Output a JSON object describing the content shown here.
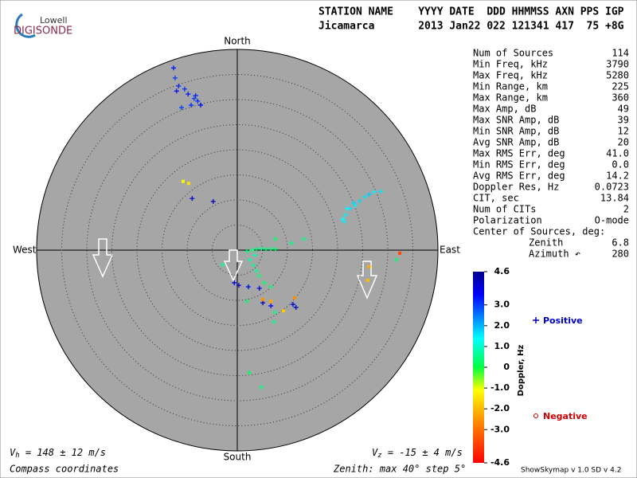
{
  "logo": {
    "top": "Lowell",
    "bottom": "DIGISONDE"
  },
  "header": {
    "line1": "STATION NAME    YYYY DATE  DDD HHMMSS AXN PPS IGP",
    "line2": "Jicamarca       2013 Jan22 022 121341 417  75 +8G"
  },
  "chart_data": {
    "type": "skymap",
    "directions": {
      "north": "North",
      "south": "South",
      "west": "West",
      "east": "East"
    },
    "rlim": [
      0,
      40
    ],
    "rticks": [
      5,
      10,
      15,
      20,
      25,
      30,
      35
    ],
    "sources": {
      "x": [
        -12.7,
        -12.4,
        -11.7,
        -12.1,
        -10.5,
        -9.8,
        -8.6,
        -7.9,
        -7.3,
        -9.2,
        -11.1,
        -8.3,
        -10.8,
        -9.7,
        -9.0,
        -4.8,
        21.0,
        21.6,
        22.5,
        23.5,
        24.4,
        25.4,
        26.3,
        27.3,
        28.6,
        21.9,
        23.2,
        21.3,
        1.9,
        2.9,
        3.8,
        4.8,
        5.7,
        6.7,
        7.6,
        3.5,
        2.5,
        3.2,
        3.8,
        4.4,
        5.4,
        6.7,
        -2.9,
        10.8,
        13.3,
        7.6,
        -0.6,
        0.3,
        2.2,
        4.4,
        5.1,
        6.7,
        11.1,
        11.7,
        5.1,
        6.7,
        9.2,
        11.4,
        26.3,
        26.0,
        7.5,
        7.3,
        1.9,
        2.4,
        4.8,
        31.7,
        32.4
      ],
      "y": [
        36.3,
        34.3,
        32.7,
        31.7,
        32.1,
        31.1,
        30.2,
        29.7,
        28.9,
        28.9,
        28.4,
        30.8,
        13.7,
        13.3,
        10.3,
        9.7,
        6.2,
        7.0,
        8.3,
        8.9,
        9.8,
        10.6,
        11.1,
        11.6,
        11.7,
        8.3,
        9.4,
        5.7,
        -0.2,
        0,
        0.2,
        0.3,
        0.2,
        0.3,
        0.2,
        -1.0,
        -1.9,
        -3.0,
        -4.1,
        -5.1,
        -6.5,
        -7.3,
        -2.9,
        1.4,
        2.2,
        2.2,
        -6.5,
        -7.0,
        -7.3,
        -7.6,
        -10.5,
        -11.1,
        -10.8,
        -11.4,
        -9.8,
        -10.2,
        -12.1,
        -9.5,
        -3.3,
        -6.0,
        -12.4,
        -14.3,
        -10.2,
        -24.4,
        -27.3,
        -1.9,
        -0.6
      ],
      "doppler": [
        3.3,
        3.0,
        3.2,
        3.4,
        3.1,
        3.3,
        3.0,
        3.2,
        3.4,
        3.1,
        3.0,
        3.2,
        -1.2,
        -1.5,
        4.0,
        4.2,
        1.4,
        1.5,
        1.6,
        1.5,
        1.7,
        1.6,
        1.8,
        1.5,
        1.6,
        1.4,
        1.7,
        1.5,
        0.4,
        0.5,
        0.3,
        0.6,
        0.4,
        0.5,
        0.3,
        0.7,
        0.8,
        0.5,
        0.6,
        0.4,
        0.3,
        0.5,
        0.6,
        0.4,
        0.5,
        0.3,
        3.8,
        4.0,
        3.6,
        3.8,
        4.2,
        3.5,
        3.9,
        4.1,
        -2.5,
        -2.3,
        -1.8,
        -2.6,
        -2.2,
        -2.0,
        0.5,
        0.6,
        0.4,
        0.3,
        0.5,
        0.3,
        -3.6
      ]
    },
    "colorbar": {
      "label": "Doppler, Hz",
      "lim": [
        -4.6,
        4.6
      ],
      "ticks": [
        4.6,
        {
          "value": 3,
          "label": "3.0"
        },
        {
          "value": 2,
          "label": "2.0"
        },
        {
          "value": 1,
          "label": "1.0"
        },
        0,
        {
          "value": -1,
          "label": "-1.0"
        },
        {
          "value": -2,
          "label": "-2.0"
        },
        {
          "value": -3,
          "label": "-3.0"
        },
        -4.6
      ]
    },
    "legend": {
      "positive": "Positive",
      "negative": "Negative"
    }
  },
  "table": [
    [
      "Num of Sources",
      "114"
    ],
    [
      "Min Freq, kHz",
      "3790"
    ],
    [
      "Max Freq, kHz",
      "5280"
    ],
    [
      "Min Range, km",
      "225"
    ],
    [
      "Max Range, km",
      "360"
    ],
    [
      "Max Amp, dB",
      "49"
    ],
    [
      "Max SNR Amp, dB",
      "39"
    ],
    [
      "Min SNR Amp, dB",
      "12"
    ],
    [
      "Avg SNR Amp, dB",
      "20"
    ],
    [
      "Max RMS Err, deg",
      "41.0"
    ],
    [
      "Min RMS Err, deg",
      "0.0"
    ],
    [
      "Avg RMS Err, deg",
      "14.2"
    ],
    [
      "Doppler Res, Hz",
      "0.0723"
    ],
    [
      "CIT, sec",
      "13.84"
    ],
    [
      "Num of CITs",
      "2"
    ],
    [
      "Polarization",
      "O-mode"
    ]
  ],
  "center": {
    "title": "Center of Sources, deg:",
    "rows": [
      [
        "Zenith",
        "6.8"
      ],
      [
        "Azimuth ↶",
        "280"
      ]
    ]
  },
  "footer": {
    "vh_sym": "V",
    "vh_sub": "h",
    "vh_text": " = 148 ± 12 m/s",
    "vz_sym": "V",
    "vz_sub": "z",
    "vz_text": " = -15 ± 4 m/s",
    "coords": "Compass coordinates",
    "zenith": "Zenith: max 40°  step 5°",
    "version": "ShowSkymap v 1.0   SD v 4.2"
  }
}
